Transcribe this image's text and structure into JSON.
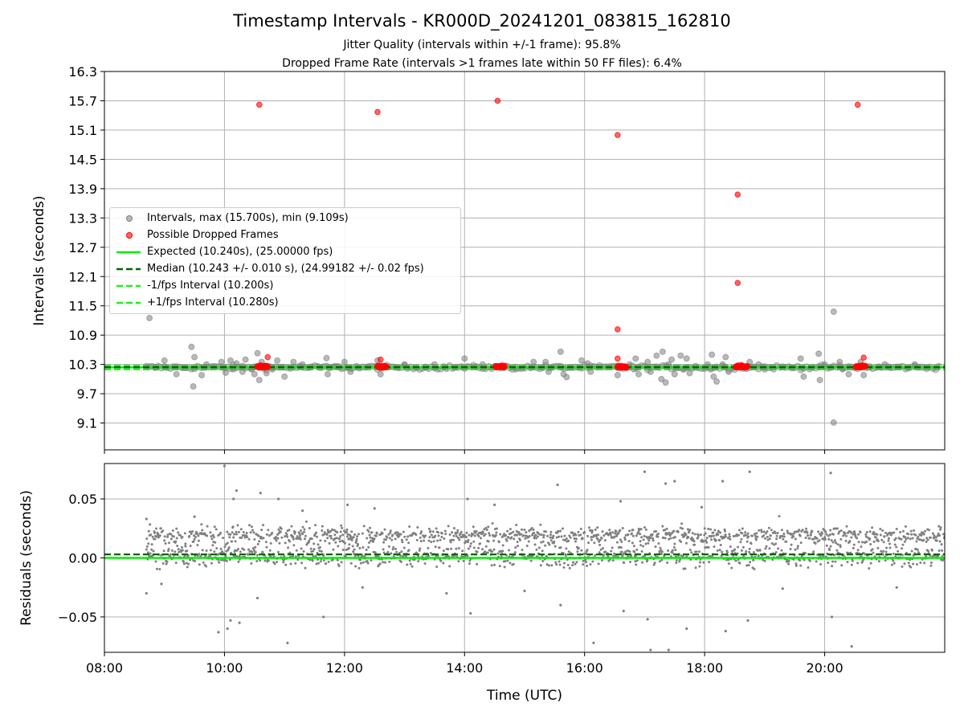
{
  "title": "Timestamp Intervals - KR000D_20241201_083815_162810",
  "subtitle1": "Jitter Quality (intervals within +/-1 frame): 95.8%",
  "subtitle2": "Dropped Frame Rate (intervals >1 frames late within 50 FF files): 6.4%",
  "colors": {
    "intervals": "#808080",
    "dropped": "#ff0000",
    "expected": "#00ee00",
    "median": "#006400",
    "bounds": "#22ee22",
    "grid": "#b0b0b0"
  },
  "chart_data": [
    {
      "type": "scatter",
      "ylabel": "Intervals (seconds)",
      "xlim": [
        8.0,
        22.0
      ],
      "ylim": [
        8.55,
        16.3
      ],
      "yticks": [
        "9.1",
        "9.7",
        "10.3",
        "10.9",
        "11.5",
        "12.1",
        "12.7",
        "13.3",
        "13.9",
        "14.5",
        "15.1",
        "15.7",
        "16.3"
      ],
      "grid": true,
      "legend_position": "center-left",
      "legend": [
        "Intervals, max (15.700s), min (9.109s)",
        "Possible Dropped Frames",
        "Expected (10.240s), (25.00000 fps)",
        "Median (10.243 +/- 0.010 s), (24.99182 +/- 0.02 fps)",
        "-1/fps Interval (10.200s)",
        "+1/fps Interval (10.280s)"
      ],
      "expected": 10.24,
      "median": 10.243,
      "lower_bound": 10.2,
      "upper_bound": 10.28,
      "series": [
        {
          "name": "Intervals, max (15.700s), min (9.109s)",
          "points": [
            [
              8.75,
              11.25
            ],
            [
              9.0,
              10.38
            ],
            [
              9.2,
              10.1
            ],
            [
              9.45,
              10.66
            ],
            [
              9.48,
              9.85
            ],
            [
              9.5,
              10.45
            ],
            [
              9.62,
              10.08
            ],
            [
              9.7,
              10.3
            ],
            [
              9.95,
              10.35
            ],
            [
              10.02,
              10.13
            ],
            [
              10.1,
              10.38
            ],
            [
              10.15,
              10.2
            ],
            [
              10.2,
              10.32
            ],
            [
              10.3,
              10.15
            ],
            [
              10.35,
              10.4
            ],
            [
              10.45,
              10.2
            ],
            [
              10.5,
              10.1
            ],
            [
              10.55,
              10.53
            ],
            [
              10.58,
              9.98
            ],
            [
              10.62,
              10.35
            ],
            [
              10.7,
              10.12
            ],
            [
              10.8,
              10.2
            ],
            [
              10.88,
              10.38
            ],
            [
              11.0,
              10.05
            ],
            [
              11.15,
              10.35
            ],
            [
              11.3,
              10.3
            ],
            [
              11.7,
              10.43
            ],
            [
              11.72,
              10.1
            ],
            [
              11.85,
              10.25
            ],
            [
              12.0,
              10.35
            ],
            [
              12.1,
              10.15
            ],
            [
              12.55,
              10.38
            ],
            [
              12.6,
              10.1
            ],
            [
              13.0,
              10.3
            ],
            [
              13.5,
              10.3
            ],
            [
              14.0,
              10.42
            ],
            [
              14.3,
              10.3
            ],
            [
              14.85,
              10.2
            ],
            [
              15.15,
              10.35
            ],
            [
              15.35,
              10.35
            ],
            [
              15.4,
              10.15
            ],
            [
              15.6,
              10.56
            ],
            [
              15.65,
              10.1
            ],
            [
              15.7,
              10.04
            ],
            [
              15.95,
              10.38
            ],
            [
              16.05,
              10.32
            ],
            [
              16.1,
              10.15
            ],
            [
              16.55,
              10.08
            ],
            [
              16.75,
              10.3
            ],
            [
              16.82,
              10.2
            ],
            [
              16.85,
              10.42
            ],
            [
              16.9,
              10.1
            ],
            [
              17.05,
              10.35
            ],
            [
              17.1,
              10.15
            ],
            [
              17.2,
              10.48
            ],
            [
              17.28,
              10.0
            ],
            [
              17.3,
              10.56
            ],
            [
              17.35,
              9.93
            ],
            [
              17.4,
              10.3
            ],
            [
              17.45,
              10.4
            ],
            [
              17.5,
              10.1
            ],
            [
              17.6,
              10.48
            ],
            [
              17.65,
              10.2
            ],
            [
              17.7,
              10.42
            ],
            [
              17.75,
              10.12
            ],
            [
              18.05,
              10.3
            ],
            [
              18.1,
              10.2
            ],
            [
              18.12,
              10.5
            ],
            [
              18.15,
              10.05
            ],
            [
              18.2,
              9.95
            ],
            [
              18.3,
              10.3
            ],
            [
              18.35,
              10.45
            ],
            [
              18.4,
              10.15
            ],
            [
              18.9,
              10.3
            ],
            [
              18.75,
              10.35
            ],
            [
              19.0,
              10.2
            ],
            [
              19.6,
              10.42
            ],
            [
              19.65,
              10.05
            ],
            [
              19.9,
              10.52
            ],
            [
              19.92,
              9.98
            ],
            [
              20.0,
              10.3
            ],
            [
              20.15,
              11.38
            ],
            [
              20.15,
              9.11
            ],
            [
              20.25,
              10.35
            ],
            [
              20.3,
              10.2
            ],
            [
              20.4,
              10.1
            ],
            [
              20.6,
              10.35
            ],
            [
              20.65,
              10.08
            ],
            [
              21.0,
              10.3
            ],
            [
              21.5,
              10.3
            ]
          ]
        },
        {
          "name": "Possible Dropped Frames",
          "points": [
            [
              10.58,
              15.62
            ],
            [
              10.72,
              10.45
            ],
            [
              12.55,
              15.47
            ],
            [
              12.6,
              10.4
            ],
            [
              14.55,
              15.7
            ],
            [
              16.55,
              15.0
            ],
            [
              16.55,
              11.02
            ],
            [
              16.55,
              10.42
            ],
            [
              18.55,
              13.78
            ],
            [
              18.55,
              11.97
            ],
            [
              20.55,
              15.62
            ],
            [
              20.65,
              10.44
            ]
          ],
          "clusters": [
            [
              10.55,
              10.72
            ],
            [
              12.55,
              12.7
            ],
            [
              14.52,
              14.67
            ],
            [
              16.55,
              16.7
            ],
            [
              18.52,
              18.72
            ],
            [
              20.52,
              20.68
            ]
          ]
        }
      ]
    },
    {
      "type": "scatter",
      "xlabel": "Time (UTC)",
      "ylabel": "Residuals (seconds)",
      "xlim": [
        8.0,
        22.0
      ],
      "ylim": [
        -0.08,
        0.08
      ],
      "xticks": [
        "08:00",
        "10:00",
        "12:00",
        "14:00",
        "16:00",
        "18:00",
        "20:00"
      ],
      "yticks": [
        "0.05",
        "0.00",
        "−0.05"
      ],
      "grid": true,
      "expected": 0.0,
      "median": 0.003,
      "band_centers": [
        0.002,
        0.019
      ],
      "outliers": [
        [
          8.7,
          0.033
        ],
        [
          8.7,
          -0.03
        ],
        [
          9.5,
          0.035
        ],
        [
          9.9,
          -0.063
        ],
        [
          10.0,
          0.078
        ],
        [
          10.05,
          -0.06
        ],
        [
          10.1,
          -0.053
        ],
        [
          10.15,
          0.05
        ],
        [
          10.2,
          0.057
        ],
        [
          10.25,
          -0.055
        ],
        [
          10.6,
          0.055
        ],
        [
          10.55,
          -0.034
        ],
        [
          10.9,
          0.05
        ],
        [
          11.05,
          -0.072
        ],
        [
          11.3,
          0.04
        ],
        [
          11.65,
          -0.05
        ],
        [
          12.05,
          0.045
        ],
        [
          12.5,
          0.042
        ],
        [
          13.7,
          -0.03
        ],
        [
          14.05,
          0.05
        ],
        [
          14.1,
          -0.047
        ],
        [
          14.5,
          0.045
        ],
        [
          15.55,
          0.062
        ],
        [
          15.6,
          -0.04
        ],
        [
          16.15,
          -0.072
        ],
        [
          16.6,
          0.048
        ],
        [
          16.65,
          -0.045
        ],
        [
          17.0,
          0.073
        ],
        [
          17.05,
          -0.052
        ],
        [
          17.1,
          -0.078
        ],
        [
          17.35,
          0.063
        ],
        [
          17.4,
          -0.078
        ],
        [
          17.5,
          0.065
        ],
        [
          17.7,
          -0.06
        ],
        [
          17.95,
          0.043
        ],
        [
          18.3,
          0.065
        ],
        [
          18.35,
          -0.062
        ],
        [
          18.75,
          0.073
        ],
        [
          18.72,
          -0.053
        ],
        [
          20.1,
          0.072
        ],
        [
          20.12,
          -0.05
        ],
        [
          20.45,
          -0.075
        ],
        [
          8.95,
          -0.022
        ],
        [
          9.35,
          0.01
        ],
        [
          12.3,
          -0.025
        ],
        [
          15.0,
          -0.028
        ],
        [
          19.3,
          -0.026
        ],
        [
          21.2,
          -0.025
        ]
      ]
    }
  ]
}
